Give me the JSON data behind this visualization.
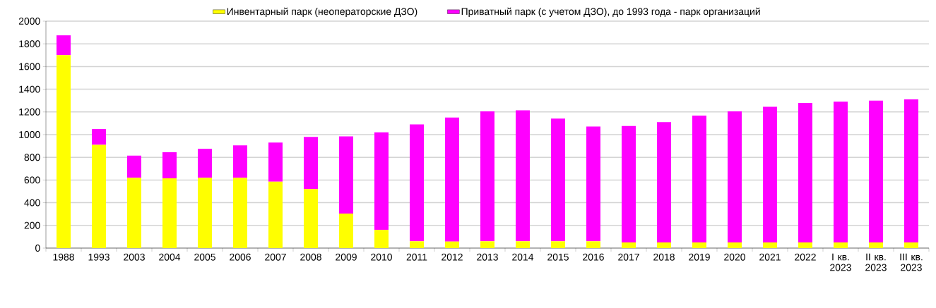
{
  "chart_data": {
    "type": "bar",
    "stacked": true,
    "categories": [
      "1988",
      "1993",
      "2003",
      "2004",
      "2005",
      "2006",
      "2007",
      "2008",
      "2009",
      "2010",
      "2011",
      "2012",
      "2013",
      "2014",
      "2015",
      "2016",
      "2017",
      "2018",
      "2019",
      "2020",
      "2021",
      "2022",
      "I кв. 2023",
      "II кв. 2023",
      "III кв. 2023"
    ],
    "series": [
      {
        "name": "Инвентарный парк (неоператорские ДЗО)",
        "color": "#ffff00",
        "values": [
          1700,
          910,
          620,
          615,
          620,
          620,
          585,
          520,
          305,
          160,
          60,
          58,
          60,
          60,
          60,
          60,
          50,
          50,
          50,
          50,
          50,
          50,
          50,
          50,
          50
        ]
      },
      {
        "name": "Приватный парк (с учетом ДЗО), до 1993 года - парк организаций",
        "color": "#ff00ff",
        "values": [
          175,
          140,
          195,
          230,
          255,
          285,
          345,
          460,
          680,
          860,
          1030,
          1092,
          1145,
          1155,
          1082,
          1011,
          1026,
          1060,
          1118,
          1155,
          1195,
          1229,
          1240,
          1250,
          1260
        ]
      }
    ],
    "ylim": [
      0,
      2000
    ],
    "yticks": [
      0,
      200,
      400,
      600,
      800,
      1000,
      1200,
      1400,
      1600,
      1800,
      2000
    ],
    "grid": "y",
    "legend": "top"
  }
}
